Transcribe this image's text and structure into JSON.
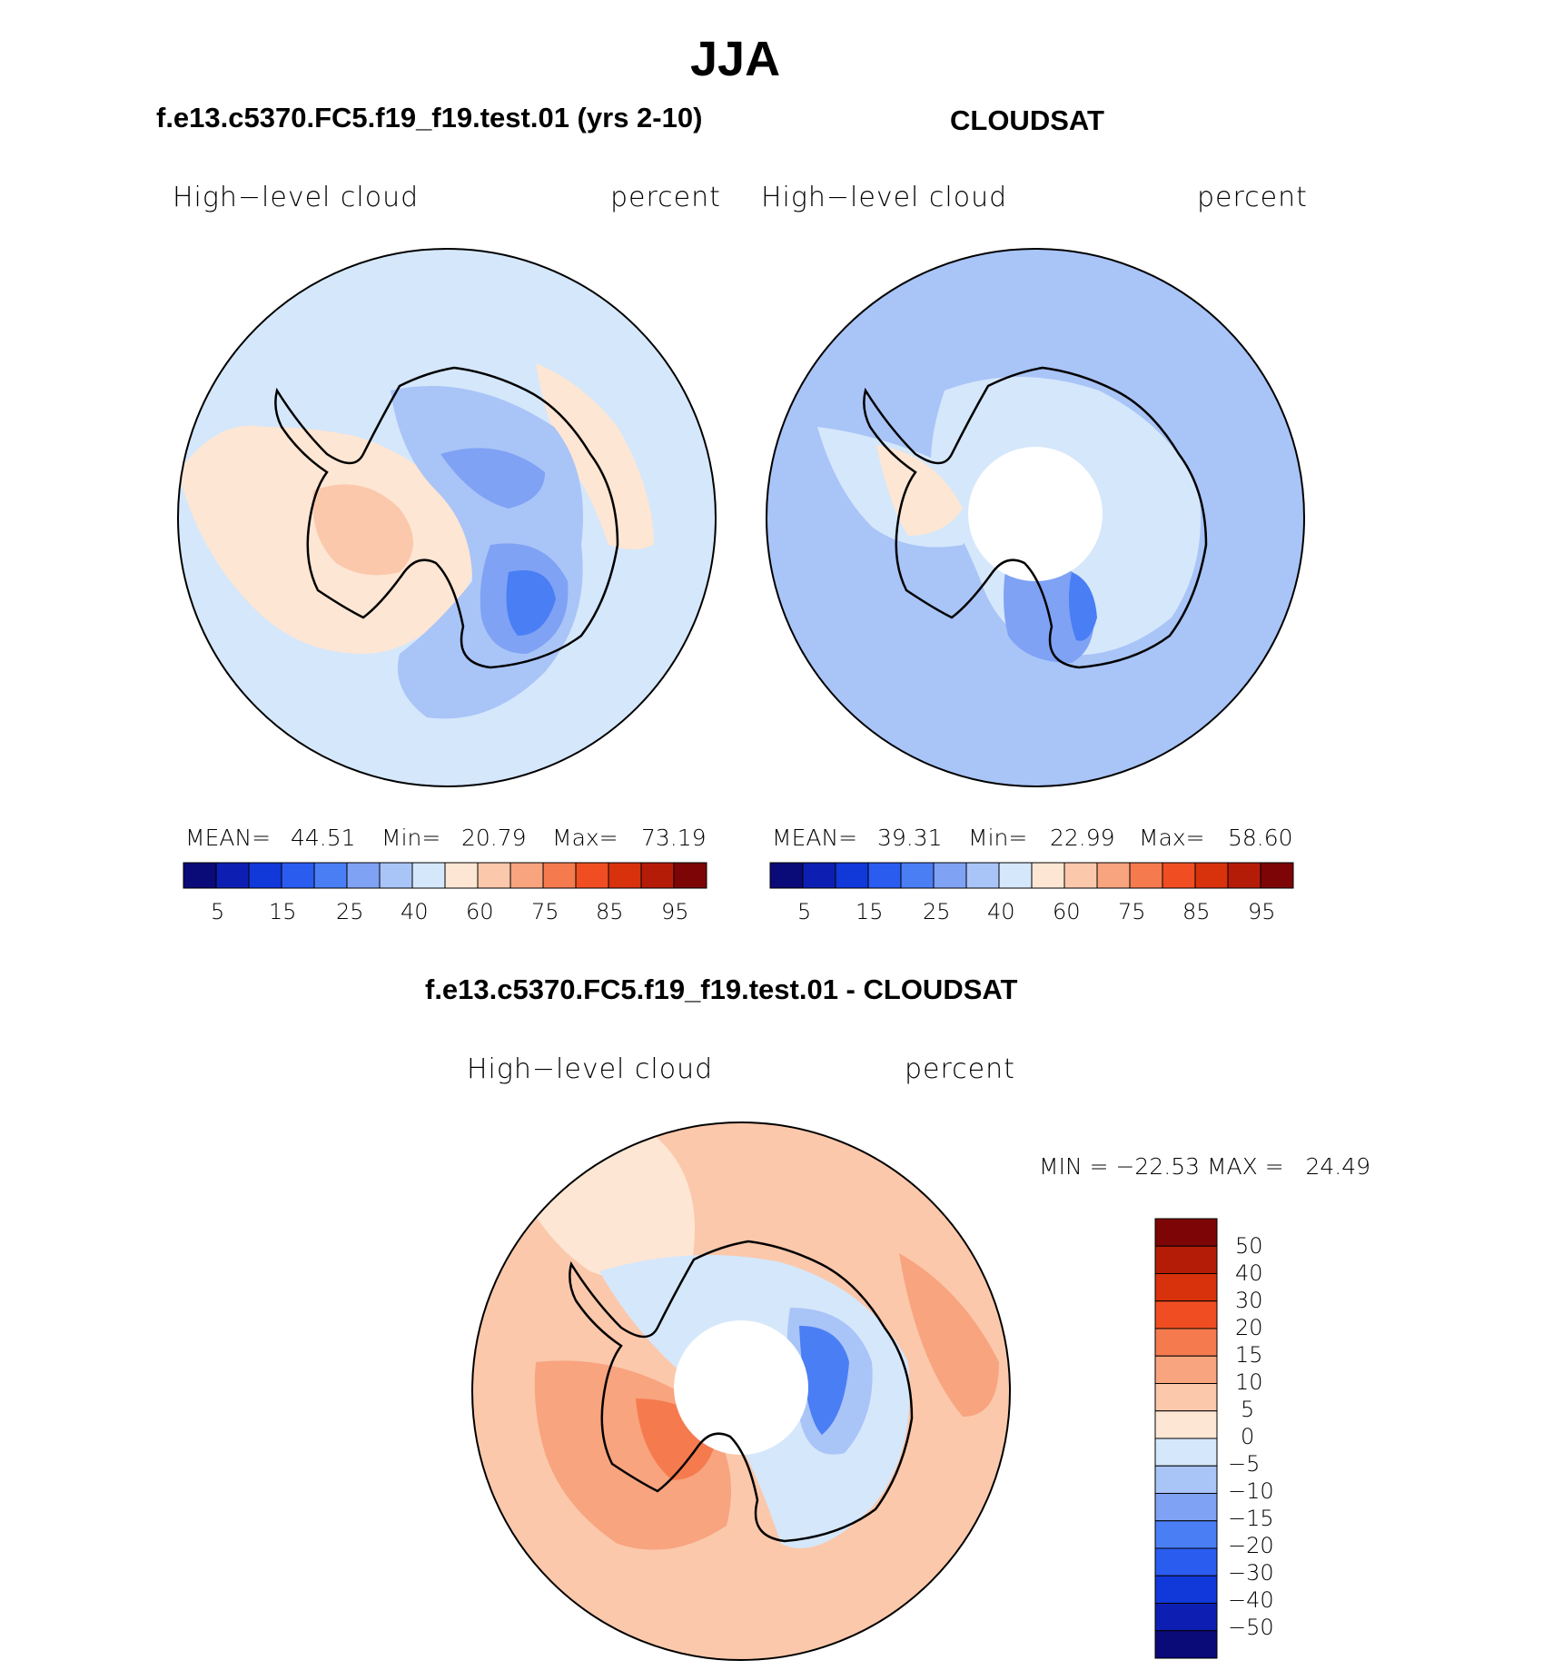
{
  "header": {
    "season": "JJA",
    "left_title": "f.e13.c5370.FC5.f19_f19.test.01 (yrs 2-10)",
    "right_title": "CLOUDSAT",
    "diff_title": "f.e13.c5370.FC5.f19_f19.test.01 - CLOUDSAT"
  },
  "panels": {
    "model": {
      "variable": "High−level cloud",
      "units": "percent",
      "stats": {
        "mean_label": "MEAN=",
        "mean": "44.51",
        "min_label": "Min=",
        "min": "20.79",
        "max_label": "Max=",
        "max": "73.19"
      }
    },
    "obs": {
      "variable": "High−level cloud",
      "units": "percent",
      "stats": {
        "mean_label": "MEAN=",
        "mean": "39.31",
        "min_label": "Min=",
        "min": "22.99",
        "max_label": "Max=",
        "max": "58.60"
      }
    },
    "diff": {
      "variable": "High−level cloud",
      "units": "percent",
      "stats": {
        "text": "MIN = −22.53 MAX =   24.49"
      }
    }
  },
  "colorbar_abs": {
    "colors": [
      "#0a0a78",
      "#0d1fb2",
      "#1138d9",
      "#2a5cf0",
      "#4a7ef5",
      "#7fa2f5",
      "#a9c4f7",
      "#d5e7fb",
      "#fde6d3",
      "#fbc8ab",
      "#f8a47f",
      "#f57b4e",
      "#f04e22",
      "#d8320c",
      "#b51c08",
      "#7d0505"
    ],
    "labels": [
      "5",
      "15",
      "25",
      "40",
      "60",
      "75",
      "85",
      "95"
    ]
  },
  "colorbar_diff": {
    "colors_top_to_bottom": [
      "#7d0505",
      "#b51c08",
      "#d8320c",
      "#f04e22",
      "#f57b4e",
      "#f8a47f",
      "#fbc8ab",
      "#fde6d3",
      "#d5e7fb",
      "#a9c4f7",
      "#7fa2f5",
      "#4a7ef5",
      "#2a5cf0",
      "#1138d9",
      "#0d1fb2",
      "#0a0a78"
    ],
    "labels_top_to_bottom": [
      "50",
      "40",
      "30",
      "20",
      "15",
      "10",
      "5",
      "0",
      "−5",
      "−10",
      "−15",
      "−20",
      "−30",
      "−40",
      "−50"
    ]
  }
}
